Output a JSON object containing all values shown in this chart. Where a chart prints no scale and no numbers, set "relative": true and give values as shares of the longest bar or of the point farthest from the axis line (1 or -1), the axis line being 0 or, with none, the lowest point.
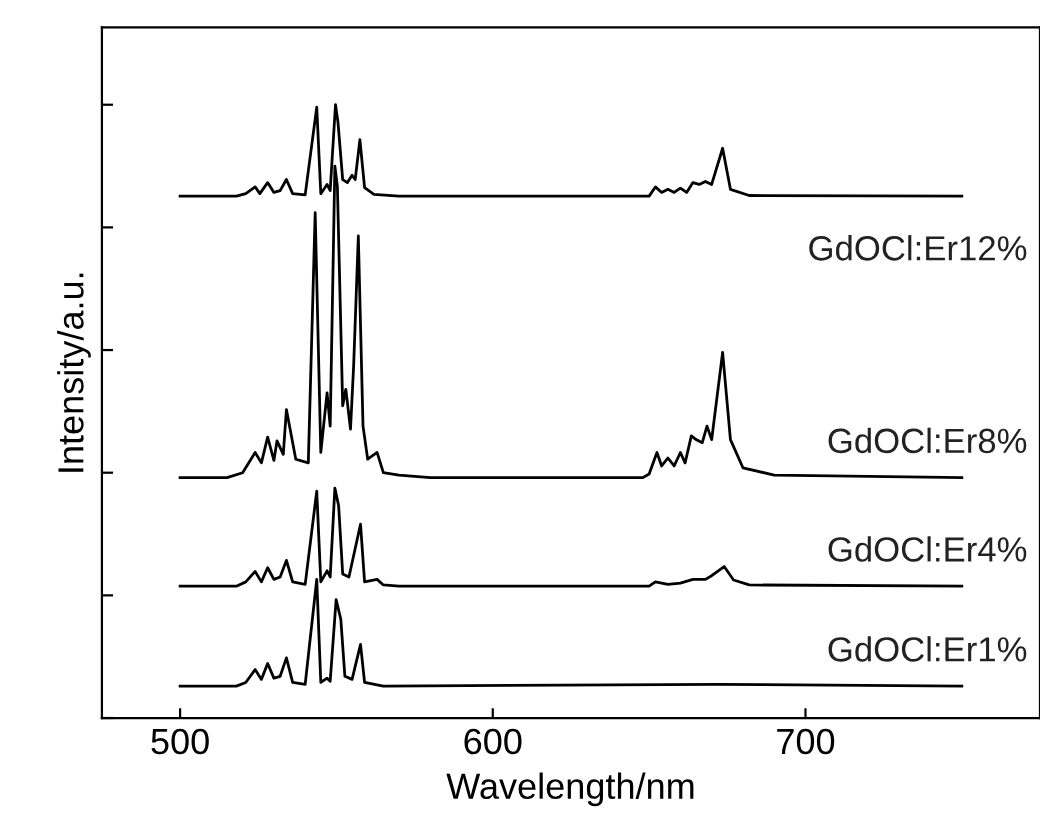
{
  "chart_data": {
    "type": "line",
    "relative": true,
    "xlabel": "Wavelength/nm",
    "ylabel": "Intensity/a.u.",
    "xlim": [
      475,
      775
    ],
    "xticks": [
      500,
      600,
      700
    ],
    "tick_labels": "x",
    "grid": false,
    "legend": false,
    "marker": "none",
    "line_style": "solid",
    "series": [
      {
        "name": "GdOCl:Er12%",
        "color": "#000000",
        "x": [
          500,
          518,
          521,
          524,
          525.5,
          528,
          530,
          532,
          534,
          536,
          540,
          543.7,
          545,
          547,
          548,
          549.7,
          550.5,
          552,
          553.5,
          555,
          556,
          557.5,
          559,
          562,
          570,
          650,
          652,
          654,
          656,
          658,
          660,
          662,
          664,
          666,
          668,
          670,
          673.5,
          676,
          682,
          750
        ],
        "values": [
          0.851,
          0.851,
          0.855,
          0.866,
          0.855,
          0.873,
          0.857,
          0.86,
          0.878,
          0.855,
          0.853,
          0.996,
          0.855,
          0.87,
          0.86,
          1.0,
          0.971,
          0.878,
          0.873,
          0.885,
          0.878,
          0.943,
          0.865,
          0.854,
          0.851,
          0.851,
          0.866,
          0.857,
          0.862,
          0.857,
          0.864,
          0.857,
          0.873,
          0.87,
          0.875,
          0.87,
          0.929,
          0.862,
          0.852,
          0.851
        ]
      },
      {
        "name": "GdOCl:Er8%",
        "color": "#000000",
        "x": [
          500,
          515,
          520,
          524,
          526,
          528,
          530,
          531,
          533,
          534,
          537,
          541,
          543.2,
          545,
          547,
          548,
          549.5,
          550.3,
          552,
          553,
          554.5,
          555.5,
          557,
          558.5,
          560,
          563,
          565,
          570,
          580,
          648,
          650,
          652.5,
          654,
          656,
          658,
          660,
          661.5,
          663.5,
          665,
          667,
          668.5,
          670,
          673.5,
          676,
          680,
          690,
          750
        ],
        "values": [
          0.392,
          0.392,
          0.4,
          0.433,
          0.416,
          0.458,
          0.42,
          0.452,
          0.43,
          0.503,
          0.422,
          0.416,
          0.824,
          0.433,
          0.53,
          0.476,
          0.9,
          0.867,
          0.509,
          0.536,
          0.471,
          0.574,
          0.786,
          0.476,
          0.422,
          0.433,
          0.4,
          0.396,
          0.392,
          0.392,
          0.398,
          0.433,
          0.411,
          0.424,
          0.411,
          0.433,
          0.416,
          0.46,
          0.454,
          0.449,
          0.476,
          0.454,
          0.596,
          0.454,
          0.408,
          0.396,
          0.392
        ]
      },
      {
        "name": "GdOCl:Er4%",
        "color": "#000000",
        "x": [
          500,
          518,
          521,
          524,
          526,
          528,
          530,
          532,
          534,
          536,
          540,
          543.7,
          545,
          547,
          548,
          549.5,
          550.7,
          552,
          554,
          557.7,
          559,
          563,
          565,
          570,
          650,
          652,
          656,
          660,
          664,
          668,
          670,
          674,
          677,
          682,
          750
        ],
        "values": [
          0.215,
          0.215,
          0.222,
          0.239,
          0.222,
          0.245,
          0.226,
          0.23,
          0.257,
          0.222,
          0.218,
          0.37,
          0.222,
          0.24,
          0.23,
          0.375,
          0.346,
          0.235,
          0.23,
          0.316,
          0.222,
          0.226,
          0.217,
          0.215,
          0.215,
          0.222,
          0.218,
          0.22,
          0.226,
          0.226,
          0.232,
          0.247,
          0.225,
          0.217,
          0.215
        ]
      },
      {
        "name": "GdOCl:Er1%",
        "color": "#000000",
        "x": [
          500,
          518,
          521,
          524,
          526,
          528,
          530,
          532,
          534,
          536,
          540,
          543.7,
          545,
          547,
          548,
          549.9,
          551.4,
          552.7,
          555,
          557.7,
          559,
          565,
          672,
          750
        ],
        "values": [
          0.052,
          0.052,
          0.058,
          0.079,
          0.063,
          0.089,
          0.065,
          0.068,
          0.098,
          0.058,
          0.055,
          0.226,
          0.058,
          0.065,
          0.06,
          0.193,
          0.161,
          0.068,
          0.063,
          0.12,
          0.058,
          0.052,
          0.055,
          0.052
        ]
      }
    ]
  }
}
